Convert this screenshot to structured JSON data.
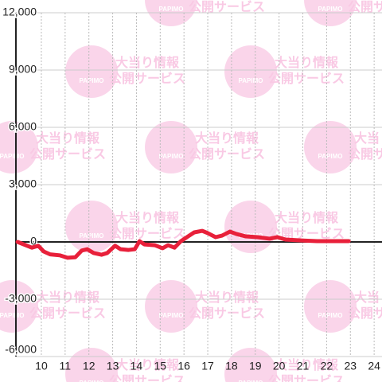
{
  "chart_data": {
    "type": "line",
    "watermark": [
      "大当り情報",
      "公開サービス",
      "PAPIMO"
    ],
    "x": [
      9.0,
      9.6,
      9.87,
      10.1,
      10.37,
      10.77,
      11.1,
      11.43,
      11.7,
      11.93,
      12.2,
      12.53,
      12.77,
      13.1,
      13.33,
      13.67,
      13.93,
      14.13,
      14.33,
      14.77,
      15.1,
      15.33,
      15.6,
      15.87,
      16.17,
      16.43,
      16.77,
      17.0,
      17.33,
      17.6,
      17.93,
      18.2,
      18.6,
      19.1,
      19.6,
      19.93,
      20.27,
      20.93,
      21.6,
      22.93
    ],
    "series": [
      {
        "color": "#e8203a",
        "values": [
          0,
          -300,
          -200,
          -500,
          -650,
          -700,
          -830,
          -800,
          -450,
          -380,
          -580,
          -670,
          -580,
          -200,
          -380,
          -420,
          -380,
          40,
          -130,
          -170,
          -330,
          -170,
          -300,
          40,
          290,
          500,
          580,
          460,
          250,
          330,
          540,
          420,
          290,
          250,
          170,
          250,
          125,
          80,
          40,
          40
        ]
      }
    ],
    "xlim": [
      8.93,
      24.33
    ],
    "xticks": [
      10,
      11,
      12,
      13,
      14,
      15,
      16,
      17,
      18,
      19,
      20,
      21,
      22,
      23,
      24
    ],
    "ylim": [
      -6000,
      12000
    ],
    "yticks": [
      {
        "value": -6000,
        "label": "-6,000"
      },
      {
        "value": -3000,
        "label": "-3,000"
      },
      0,
      {
        "value": 3000,
        "label": "3,000"
      },
      {
        "value": 6000,
        "label": "6,000"
      },
      {
        "value": 9000,
        "label": "9,000"
      },
      {
        "value": 12000,
        "label": "12,000"
      }
    ],
    "grid": true
  }
}
